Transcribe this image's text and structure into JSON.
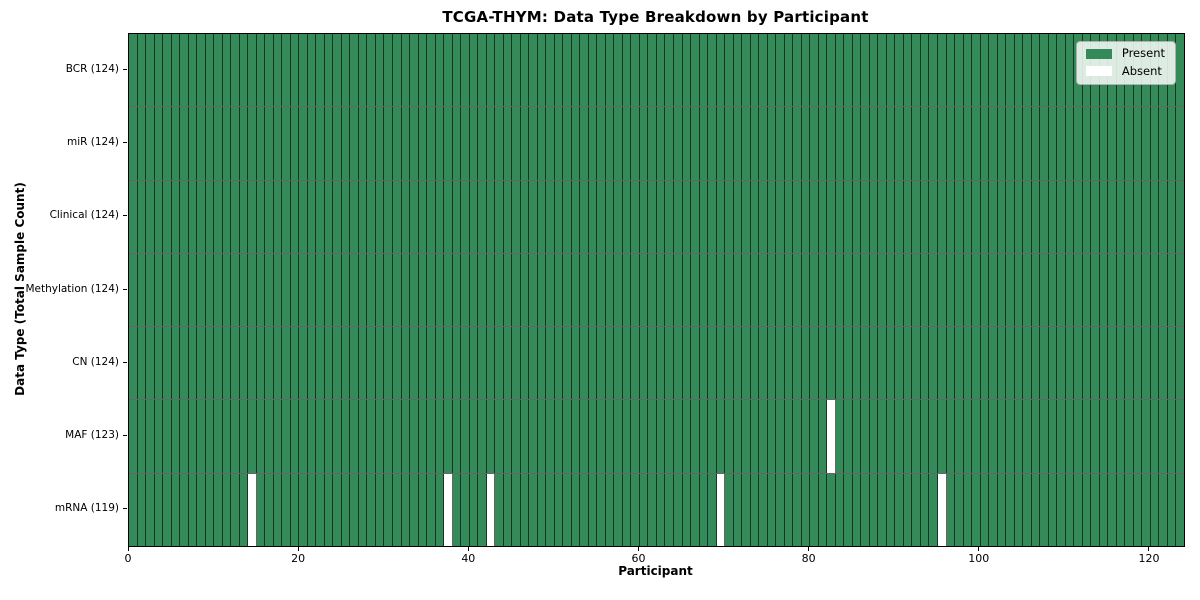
{
  "chart_data": {
    "type": "heatmap",
    "title": "TCGA-THYM: Data Type Breakdown by Participant",
    "xlabel": "Participant",
    "ylabel": "Data Type (Total Sample Count)",
    "x_axis": {
      "label": "Participant",
      "min": 0,
      "max": 124,
      "ticks": [
        0,
        20,
        40,
        60,
        80,
        100,
        120
      ]
    },
    "n_participants": 124,
    "cell_states": [
      "Present",
      "Absent"
    ],
    "rows": [
      {
        "label": "BCR (124)",
        "name": "BCR",
        "total": 124,
        "absent_participants": []
      },
      {
        "label": "miR (124)",
        "name": "miR",
        "total": 124,
        "absent_participants": []
      },
      {
        "label": "Clinical (124)",
        "name": "Clinical",
        "total": 124,
        "absent_participants": []
      },
      {
        "label": "Methylation (124)",
        "name": "Methylation",
        "total": 124,
        "absent_participants": []
      },
      {
        "label": "CN (124)",
        "name": "CN",
        "total": 124,
        "absent_participants": []
      },
      {
        "label": "MAF (123)",
        "name": "MAF",
        "total": 123,
        "absent_participants": [
          82
        ]
      },
      {
        "label": "mRNA (119)",
        "name": "mRNA",
        "total": 119,
        "absent_participants": [
          14,
          37,
          42,
          69,
          95
        ]
      }
    ],
    "legend": {
      "position": "upper right",
      "entries": [
        {
          "label": "Present",
          "color": "#348a58"
        },
        {
          "label": "Absent",
          "color": "#ffffff"
        }
      ]
    },
    "colors": {
      "present": "#348a58",
      "absent": "#ffffff",
      "cell_edge": "rgba(0,0,0,0.6)",
      "spine": "#000000",
      "background": "#ffffff"
    }
  }
}
